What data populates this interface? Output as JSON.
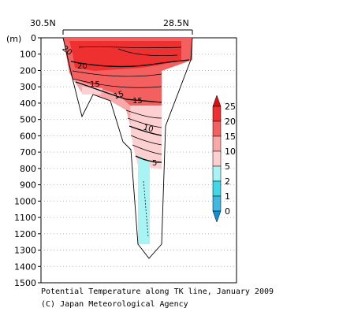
{
  "chart_data": {
    "type": "contour-section",
    "title": "Potential Temperature along TK line, January 2009",
    "credit": "(C) Japan Meteorological Agency",
    "x_axis_labels": [
      "30.5N",
      "28.5N"
    ],
    "y_unit_label": "(m)",
    "y_ticks": [
      0,
      100,
      200,
      300,
      400,
      500,
      600,
      700,
      800,
      900,
      1000,
      1100,
      1200,
      1300,
      1400,
      1500
    ],
    "ylim": [
      0,
      1500
    ],
    "y_inverted": true,
    "grid": true,
    "contour_labels": [
      {
        "value": "20",
        "depth": 60,
        "station": 1
      },
      {
        "value": "20",
        "depth": 160,
        "station": 3
      },
      {
        "value": "15",
        "depth": 280,
        "station": 3
      },
      {
        "value": "15",
        "depth": 340,
        "station": 6
      },
      {
        "value": "15",
        "depth": 370,
        "station": 8
      },
      {
        "value": "10",
        "depth": 560,
        "station": 10
      },
      {
        "value": "5",
        "depth": 770,
        "station": 11
      }
    ],
    "colorbar": {
      "levels": [
        "25",
        "20",
        "15",
        "10",
        "5",
        "2",
        "1",
        "0"
      ],
      "bins": [
        {
          "from": 20,
          "to": 25,
          "color": "#ee3030"
        },
        {
          "from": 15,
          "to": 20,
          "color": "#f46060"
        },
        {
          "from": 10,
          "to": 15,
          "color": "#f8a8a8"
        },
        {
          "from": 5,
          "to": 10,
          "color": "#fcd0d0"
        },
        {
          "from": 2,
          "to": 5,
          "color": "#a8f4f4"
        },
        {
          "from": 1,
          "to": 2,
          "color": "#40d8e8"
        },
        {
          "from": 0,
          "to": 1,
          "color": "#40b8e0"
        }
      ],
      "top_arrow_color": "#dd1010",
      "bottom_arrow_color": "#1090d8"
    }
  }
}
